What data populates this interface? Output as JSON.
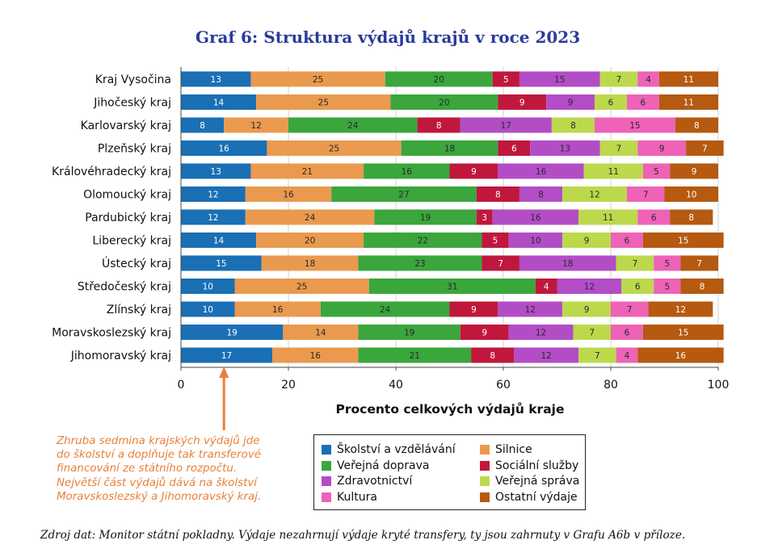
{
  "chart_data": {
    "type": "bar",
    "orientation": "horizontal",
    "stacked": true,
    "title": "Graf 6: Struktura výdajů krajů v roce 2023",
    "xlabel": "Procento celkových výdajů kraje",
    "xlim": [
      0,
      100
    ],
    "xticks": [
      0,
      20,
      40,
      60,
      80,
      100
    ],
    "categories": [
      "Kraj Vysočina",
      "Jihočeský kraj",
      "Karlovarský kraj",
      "Plzeňský kraj",
      "Královéhradecký kraj",
      "Olomoucký kraj",
      "Pardubický kraj",
      "Liberecký kraj",
      "Ústecký kraj",
      "Středočeský kraj",
      "Zlínský kraj",
      "Moravskoslezský kraj",
      "Jihomoravský kraj"
    ],
    "series": [
      {
        "name": "Školství a vzdělávání",
        "color": "#1a6fb5",
        "values": [
          13,
          14,
          8,
          16,
          13,
          12,
          12,
          14,
          15,
          10,
          10,
          19,
          17
        ]
      },
      {
        "name": "Silnice",
        "color": "#ea9a4e",
        "values": [
          25,
          25,
          12,
          25,
          21,
          16,
          24,
          20,
          18,
          25,
          16,
          14,
          16
        ]
      },
      {
        "name": "Veřejná doprava",
        "color": "#3aa63c",
        "values": [
          20,
          20,
          24,
          18,
          16,
          27,
          19,
          22,
          23,
          31,
          24,
          19,
          21
        ]
      },
      {
        "name": "Sociální služby",
        "color": "#c0173d",
        "values": [
          5,
          9,
          8,
          6,
          9,
          8,
          3,
          5,
          7,
          4,
          9,
          9,
          8
        ]
      },
      {
        "name": "Zdravotnictví",
        "color": "#b24dc6",
        "values": [
          15,
          9,
          17,
          13,
          16,
          8,
          16,
          10,
          18,
          12,
          12,
          12,
          12
        ]
      },
      {
        "name": "Veřejná správa",
        "color": "#bcd94c",
        "values": [
          7,
          6,
          8,
          7,
          11,
          12,
          11,
          9,
          7,
          6,
          9,
          7,
          7
        ]
      },
      {
        "name": "Kultura",
        "color": "#ee62b8",
        "values": [
          4,
          6,
          15,
          9,
          5,
          7,
          6,
          6,
          5,
          5,
          7,
          6,
          4
        ]
      },
      {
        "name": "Ostatní výdaje",
        "color": "#b55a10",
        "values": [
          11,
          11,
          8,
          7,
          9,
          10,
          8,
          15,
          7,
          8,
          12,
          15,
          16
        ]
      }
    ],
    "legend_position": "bottom-center",
    "annotation": {
      "lines": [
        "Zhruba sedmina krajských výdajů jde",
        "do školství a doplňuje tak transferové",
        "financování ze státního rozpočtu.",
        "Největší část výdajů dává na školství",
        "Moravskoslezský a Jihomoravský kraj."
      ],
      "color": "#e8803a",
      "arrow_target_x": 8
    },
    "source": "Zdroj dat: Monitor státní pokladny. Výdaje nezahrnují výdaje kryté transfery, ty jsou zahrnuty v Grafu A6b v příloze."
  }
}
